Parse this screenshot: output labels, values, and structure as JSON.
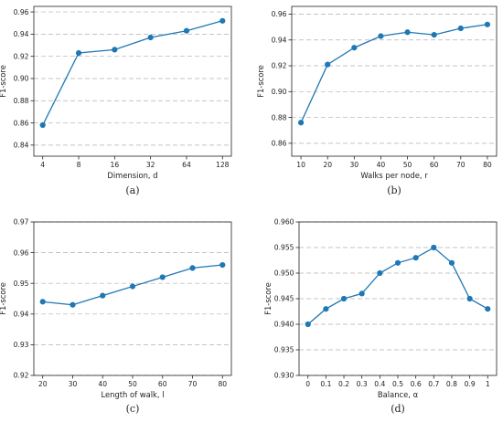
{
  "figure": {
    "accent_color": "#1f77b4",
    "grid_color": "#b0b0b0"
  },
  "chart_data": [
    {
      "type": "line",
      "caption": "(a)",
      "xlabel": "Dimension, d",
      "ylabel": "F1-score",
      "categories": [
        "4",
        "8",
        "16",
        "32",
        "64",
        "128"
      ],
      "values": [
        0.858,
        0.923,
        0.926,
        0.937,
        0.943,
        0.952
      ],
      "ylim": [
        0.83,
        0.965
      ],
      "yticks": [
        0.84,
        0.86,
        0.88,
        0.9,
        0.92,
        0.94,
        0.96
      ],
      "ytick_labels": [
        "0.84",
        "0.86",
        "0.88",
        "0.90",
        "0.92",
        "0.94",
        "0.96"
      ],
      "grid": true
    },
    {
      "type": "line",
      "caption": "(b)",
      "xlabel": "Walks per node, r",
      "ylabel": "F1-score",
      "categories": [
        "10",
        "20",
        "30",
        "40",
        "50",
        "60",
        "70",
        "80"
      ],
      "values": [
        0.876,
        0.921,
        0.934,
        0.943,
        0.946,
        0.944,
        0.949,
        0.952
      ],
      "ylim": [
        0.85,
        0.966
      ],
      "yticks": [
        0.86,
        0.88,
        0.9,
        0.92,
        0.94,
        0.96
      ],
      "ytick_labels": [
        "0.86",
        "0.88",
        "0.90",
        "0.92",
        "0.94",
        "0.96"
      ],
      "grid": true
    },
    {
      "type": "line",
      "caption": "(c)",
      "xlabel": "Length of walk, l",
      "ylabel": "F1-score",
      "categories": [
        "20",
        "30",
        "40",
        "50",
        "60",
        "70",
        "80"
      ],
      "values": [
        0.944,
        0.943,
        0.946,
        0.949,
        0.952,
        0.955,
        0.956
      ],
      "ylim": [
        0.92,
        0.97
      ],
      "yticks": [
        0.92,
        0.93,
        0.94,
        0.95,
        0.96,
        0.97
      ],
      "ytick_labels": [
        "0.92",
        "0.93",
        "0.94",
        "0.95",
        "0.96",
        "0.97"
      ],
      "grid": true
    },
    {
      "type": "line",
      "caption": "(d)",
      "xlabel": "Balance, α",
      "ylabel": "F1-score",
      "categories": [
        "0",
        "0.1",
        "0.2",
        "0.3",
        "0.4",
        "0.5",
        "0.6",
        "0.7",
        "0.8",
        "0.9",
        "1"
      ],
      "values": [
        0.94,
        0.943,
        0.945,
        0.946,
        0.95,
        0.952,
        0.953,
        0.955,
        0.952,
        0.945,
        0.943
      ],
      "ylim": [
        0.93,
        0.96
      ],
      "yticks": [
        0.93,
        0.935,
        0.94,
        0.945,
        0.95,
        0.955,
        0.96
      ],
      "ytick_labels": [
        "0.930",
        "0.935",
        "0.940",
        "0.945",
        "0.950",
        "0.955",
        "0.960"
      ],
      "grid": true
    }
  ]
}
